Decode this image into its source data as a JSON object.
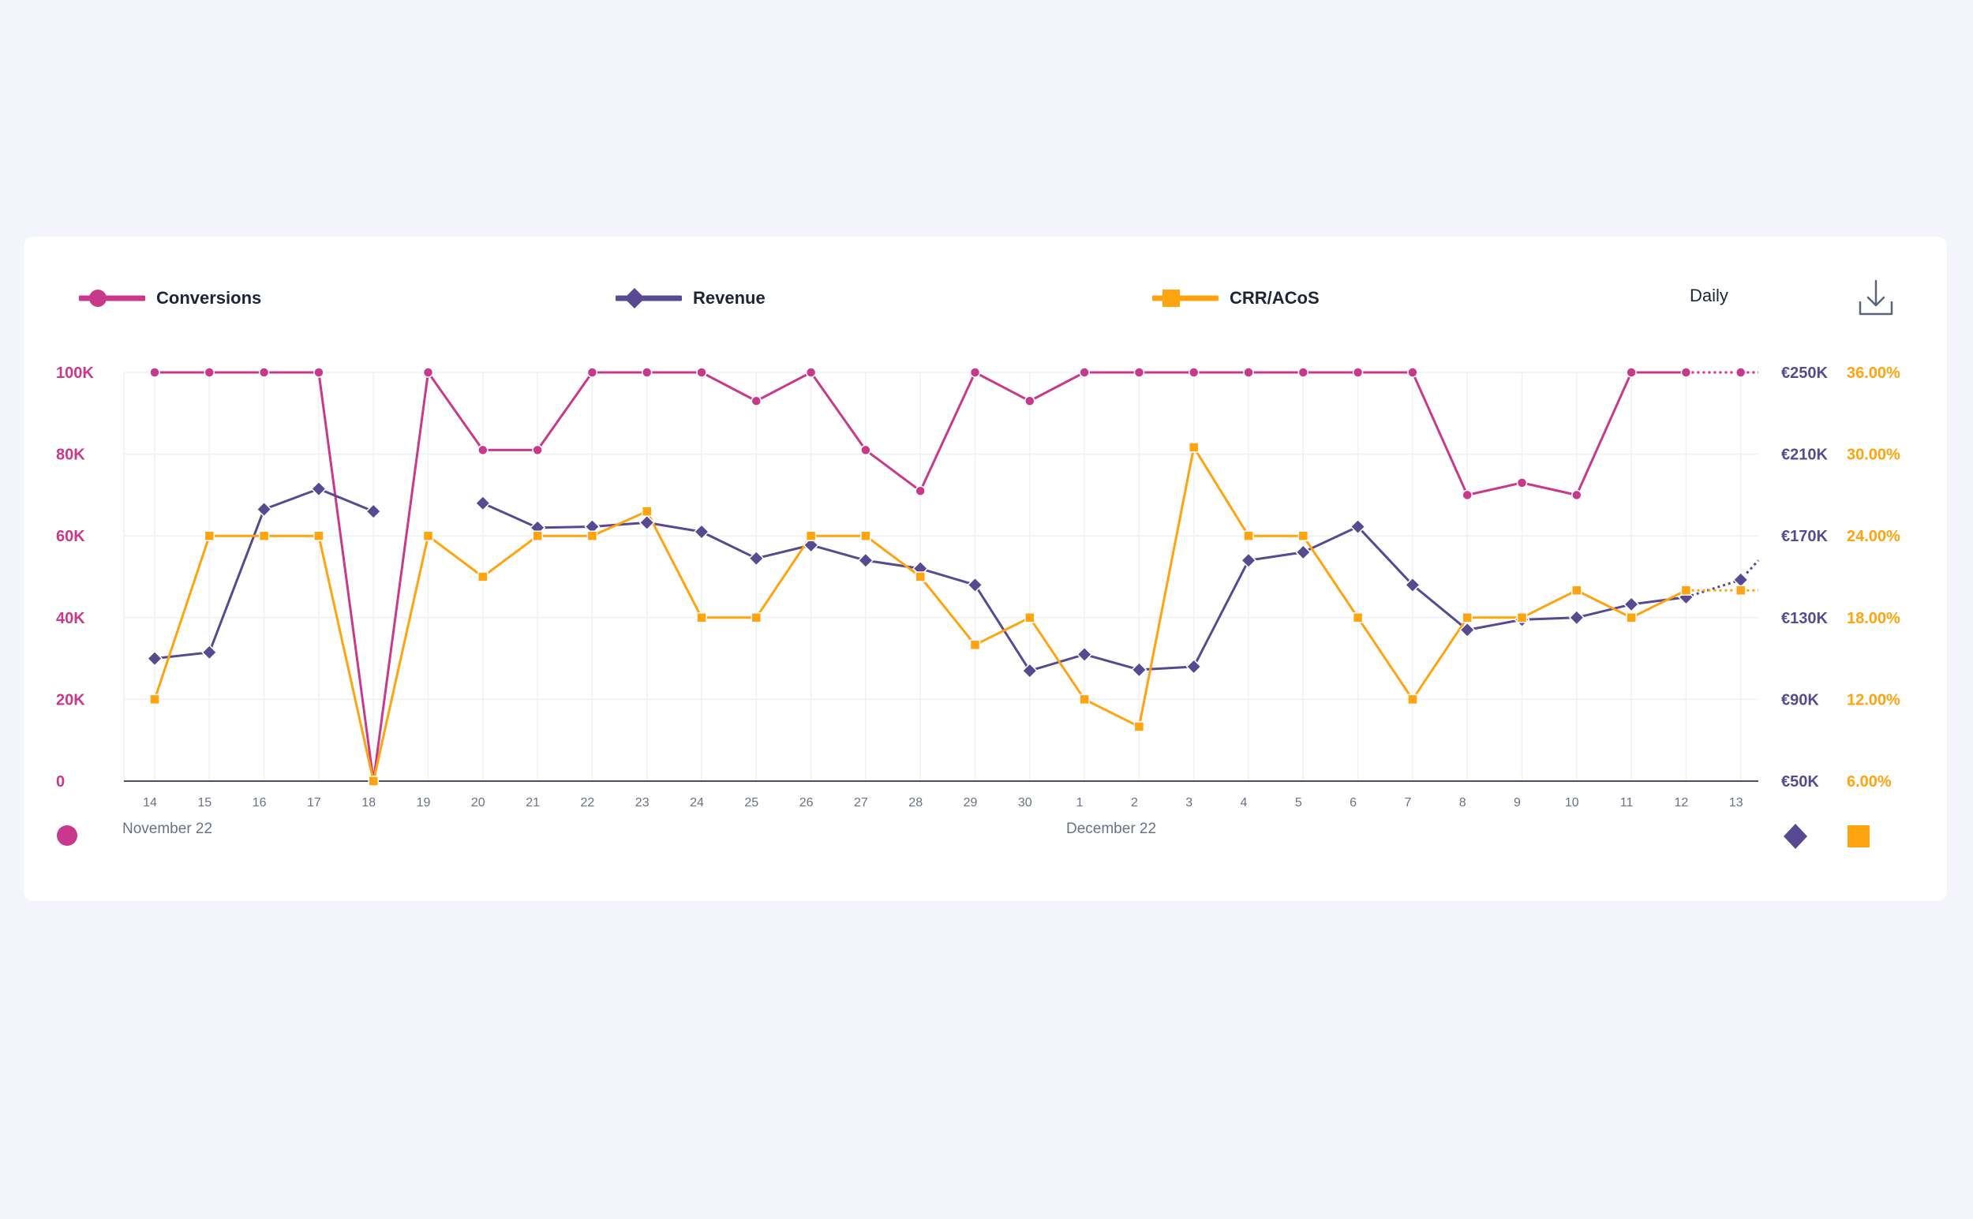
{
  "legend": {
    "conversions": {
      "label": "Conversions",
      "color": "#c9398b",
      "icon": "circle-marker-icon"
    },
    "revenue": {
      "label": "Revenue",
      "color": "#574a91",
      "icon": "diamond-marker-icon"
    },
    "crr": {
      "label": "CRR/ACoS",
      "color": "#ffa30f",
      "icon": "square-marker-icon"
    }
  },
  "controls": {
    "period": "Daily",
    "download_icon": "download-icon"
  },
  "chart_data": {
    "type": "line",
    "x": [
      "14",
      "15",
      "16",
      "17",
      "18",
      "19",
      "20",
      "21",
      "22",
      "23",
      "24",
      "25",
      "26",
      "27",
      "28",
      "29",
      "30",
      "1",
      "2",
      "3",
      "4",
      "5",
      "6",
      "7",
      "8",
      "9",
      "10",
      "11",
      "12",
      "13"
    ],
    "month_labels": [
      {
        "label": "November 22",
        "start_index": 0
      },
      {
        "label": "December 22",
        "start_index": 17
      }
    ],
    "axes": {
      "left": {
        "ticks": [
          0,
          20000,
          40000,
          60000,
          80000,
          100000
        ],
        "tick_labels": [
          "0",
          "20K",
          "40K",
          "60K",
          "80K",
          "100K"
        ],
        "color": "#c9398b"
      },
      "right_revenue": {
        "ticks": [
          50000,
          90000,
          130000,
          170000,
          210000,
          250000
        ],
        "tick_labels": [
          "€50K",
          "€90K",
          "€130K",
          "€170K",
          "€210K",
          "€250K"
        ],
        "color": "#574a91"
      },
      "right_crr": {
        "ticks": [
          6,
          12,
          18,
          24,
          30,
          36
        ],
        "tick_labels": [
          "6.00%",
          "12.00%",
          "18.00%",
          "24.00%",
          "30.00%",
          "36.00%"
        ],
        "color": "#ffa30f"
      }
    },
    "grid": true,
    "series": [
      {
        "name": "Conversions",
        "axis": "left",
        "marker": "circle",
        "color": "#c9398b",
        "values": [
          100000,
          100000,
          100000,
          100000,
          0,
          100000,
          81000,
          81000,
          100000,
          100000,
          100000,
          93000,
          100000,
          81000,
          71000,
          100000,
          93000,
          100000,
          100000,
          100000,
          100000,
          100000,
          100000,
          100000,
          70000,
          73000,
          70000,
          100000,
          100000,
          100000
        ],
        "projected_from_index": 28,
        "projected_end_value": 100000
      },
      {
        "name": "Revenue",
        "axis": "right_revenue",
        "marker": "diamond",
        "color": "#574a91",
        "values": [
          null,
          113000,
          183000,
          193000,
          182000,
          null,
          186000,
          174000,
          174500,
          176500,
          172000,
          159000,
          165500,
          158000,
          154000,
          146000,
          104000,
          112000,
          104500,
          106000,
          158000,
          162000,
          174500,
          146000,
          124000,
          129000,
          130000,
          136500,
          140000,
          148500
        ],
        "leading_value": 110000,
        "projected_from_index": 28,
        "projected_end_value": 158000
      },
      {
        "name": "CRR/ACoS",
        "axis": "right_crr",
        "marker": "square",
        "color": "#ffa30f",
        "values": [
          12.0,
          24.0,
          24.0,
          24.0,
          6.0,
          24.0,
          21.0,
          24.0,
          24.0,
          25.8,
          18.0,
          18.0,
          24.0,
          24.0,
          21.0,
          16.0,
          18.0,
          12.0,
          10.0,
          30.5,
          24.0,
          24.0,
          18.0,
          12.0,
          18.0,
          18.0,
          20.0,
          18.0,
          20.0,
          20.0
        ],
        "projected_from_index": 28,
        "projected_end_value": 20.0
      }
    ]
  }
}
